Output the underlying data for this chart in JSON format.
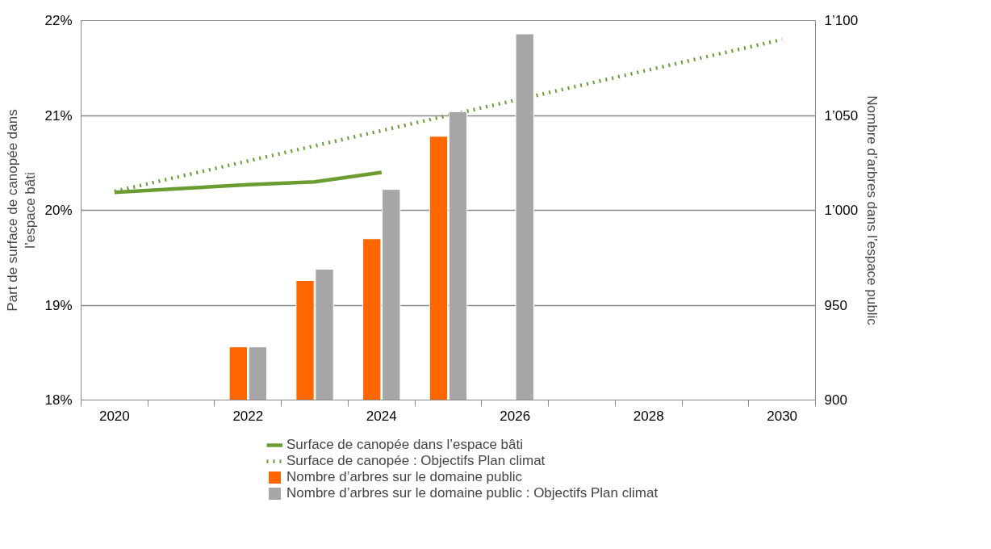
{
  "chart_data": {
    "type": "bar",
    "categories": [
      "2020",
      null,
      "2022",
      null,
      "2024",
      null,
      "2026",
      null,
      "2028",
      null,
      "2030"
    ],
    "ylabel": "Part de surface de canopée dans\nl’espace bâti",
    "y2label": "Nombre d’arbres dans l’espace public",
    "ylim": [
      18,
      22
    ],
    "yticks": [
      {
        "value": 18,
        "label": "18%"
      },
      {
        "value": 19,
        "label": "19%"
      },
      {
        "value": 20,
        "label": "20%"
      },
      {
        "value": 21,
        "label": "21%"
      },
      {
        "value": 22,
        "label": "22%"
      }
    ],
    "y2lim": [
      900,
      1100
    ],
    "y2ticks": [
      900,
      950,
      {
        "value": 1000,
        "label": "1’000"
      },
      {
        "value": 1050,
        "label": "1’050"
      },
      {
        "value": 1100,
        "label": "1’100"
      }
    ],
    "grid": "y",
    "legend": "bottom",
    "series": [
      {
        "name": "Surface de canopée dans l’espace bâti",
        "type": "line",
        "color": "#6a9c32",
        "line_style": "solid",
        "values": [
          20.19,
          20.23,
          20.27,
          20.3,
          20.4,
          null,
          null,
          null,
          null,
          null,
          null
        ]
      },
      {
        "name": "Surface de canopée : Objectifs Plan climat",
        "type": "line",
        "color": "#6a9c32",
        "line_style": "dotted",
        "values": [
          20.2,
          20.36,
          20.52,
          20.68,
          20.84,
          21.0,
          21.16,
          21.32,
          21.48,
          21.64,
          21.8
        ]
      },
      {
        "name": "Nombre d’arbres sur le domaine public",
        "axis": "y2",
        "color": "#ff6600",
        "values": [
          null,
          null,
          928,
          963,
          985,
          1039,
          null,
          null,
          null,
          null,
          null
        ]
      },
      {
        "name": "Nombre d’arbres sur le domaine public : Objectifs Plan climat",
        "axis": "y2",
        "color": "#a6a6a6",
        "values": [
          null,
          null,
          928,
          969,
          1011,
          1052,
          1093,
          null,
          null,
          null,
          null
        ]
      }
    ]
  }
}
